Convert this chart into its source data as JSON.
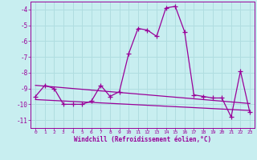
{
  "xlabel": "Windchill (Refroidissement éolien,°C)",
  "background_color": "#c8eef0",
  "grid_color": "#b0dde0",
  "line_color": "#990099",
  "x_values": [
    0,
    1,
    2,
    3,
    4,
    5,
    6,
    7,
    8,
    9,
    10,
    11,
    12,
    13,
    14,
    15,
    16,
    17,
    18,
    19,
    20,
    21,
    22,
    23
  ],
  "y_windchill": [
    -9.5,
    -8.8,
    -9.0,
    -10.0,
    -10.0,
    -10.0,
    -9.8,
    -8.8,
    -9.5,
    -9.2,
    -6.8,
    -5.2,
    -5.3,
    -5.7,
    -3.9,
    -3.8,
    -5.4,
    -9.4,
    -9.5,
    -9.6,
    -9.6,
    -10.8,
    -7.9,
    -10.5
  ],
  "y_trend1": [
    -8.8,
    -8.85,
    -8.9,
    -8.95,
    -9.0,
    -9.05,
    -9.1,
    -9.15,
    -9.2,
    -9.25,
    -9.3,
    -9.35,
    -9.4,
    -9.45,
    -9.5,
    -9.55,
    -9.6,
    -9.65,
    -9.7,
    -9.75,
    -9.8,
    -9.85,
    -9.9,
    -9.95
  ],
  "y_trend2": [
    -9.7,
    -9.73,
    -9.76,
    -9.79,
    -9.82,
    -9.85,
    -9.88,
    -9.91,
    -9.94,
    -9.97,
    -10.0,
    -10.03,
    -10.06,
    -10.09,
    -10.12,
    -10.15,
    -10.18,
    -10.21,
    -10.24,
    -10.27,
    -10.3,
    -10.33,
    -10.36,
    -10.39
  ],
  "ylim": [
    -11.5,
    -3.5
  ],
  "yticks": [
    -11,
    -10,
    -9,
    -8,
    -7,
    -6,
    -5,
    -4
  ],
  "xticks": [
    0,
    1,
    2,
    3,
    4,
    5,
    6,
    7,
    8,
    9,
    10,
    11,
    12,
    13,
    14,
    15,
    16,
    17,
    18,
    19,
    20,
    21,
    22,
    23
  ]
}
